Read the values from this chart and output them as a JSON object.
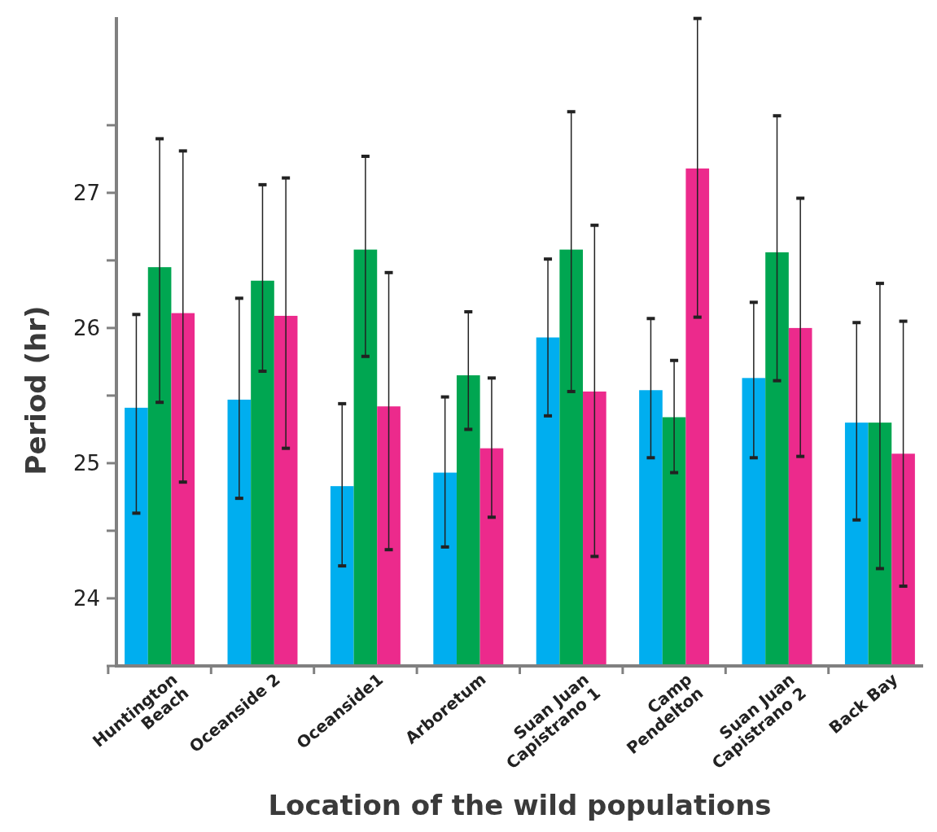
{
  "chart_data": {
    "type": "bar",
    "xlabel": "Location of the wild populations",
    "ylabel": "Period (hr)",
    "categories": [
      "Huntington\nBeach",
      "Oceanside 2",
      "Oceanside1",
      "Arboretum",
      "Suan Juan\nCapistrano 1",
      "Camp\nPendelton",
      "Suan Juan\nCapistrano 2",
      "Back Bay"
    ],
    "series": [
      {
        "color": "#00aeef",
        "values": [
          25.41,
          25.47,
          24.83,
          24.93,
          25.93,
          25.54,
          25.63,
          25.3
        ],
        "errors": [
          [
            24.63,
            26.1
          ],
          [
            24.74,
            26.22
          ],
          [
            24.24,
            25.44
          ],
          [
            24.38,
            25.49
          ],
          [
            25.35,
            26.51
          ],
          [
            25.04,
            26.07
          ],
          [
            25.04,
            26.19
          ],
          [
            24.58,
            26.04
          ]
        ]
      },
      {
        "color": "#00a651",
        "values": [
          26.45,
          26.35,
          26.58,
          25.65,
          26.58,
          25.34,
          26.56,
          25.3
        ],
        "errors": [
          [
            25.45,
            27.4
          ],
          [
            25.68,
            27.06
          ],
          [
            25.79,
            27.27
          ],
          [
            25.25,
            26.12
          ],
          [
            25.53,
            27.6
          ],
          [
            24.93,
            25.76
          ],
          [
            25.61,
            27.57
          ],
          [
            24.22,
            26.33
          ]
        ]
      },
      {
        "color": "#ec2a8c",
        "values": [
          26.11,
          26.09,
          25.42,
          25.11,
          25.53,
          27.18,
          26.0,
          25.07
        ],
        "errors": [
          [
            24.86,
            27.31
          ],
          [
            25.11,
            27.11
          ],
          [
            24.36,
            26.41
          ],
          [
            24.6,
            25.63
          ],
          [
            24.31,
            26.76
          ],
          [
            26.08,
            28.29
          ],
          [
            25.05,
            26.96
          ],
          [
            24.09,
            26.05
          ]
        ]
      }
    ],
    "ylim": [
      23.5,
      28.3
    ],
    "yticks": [
      {
        "value": 23.5,
        "label": null
      },
      24,
      {
        "value": 24.5,
        "label": null
      },
      25,
      {
        "value": 25.5,
        "label": null
      },
      26,
      {
        "value": 26.5,
        "label": null
      },
      27,
      {
        "value": 27.5,
        "label": null
      }
    ],
    "grid": false
  }
}
